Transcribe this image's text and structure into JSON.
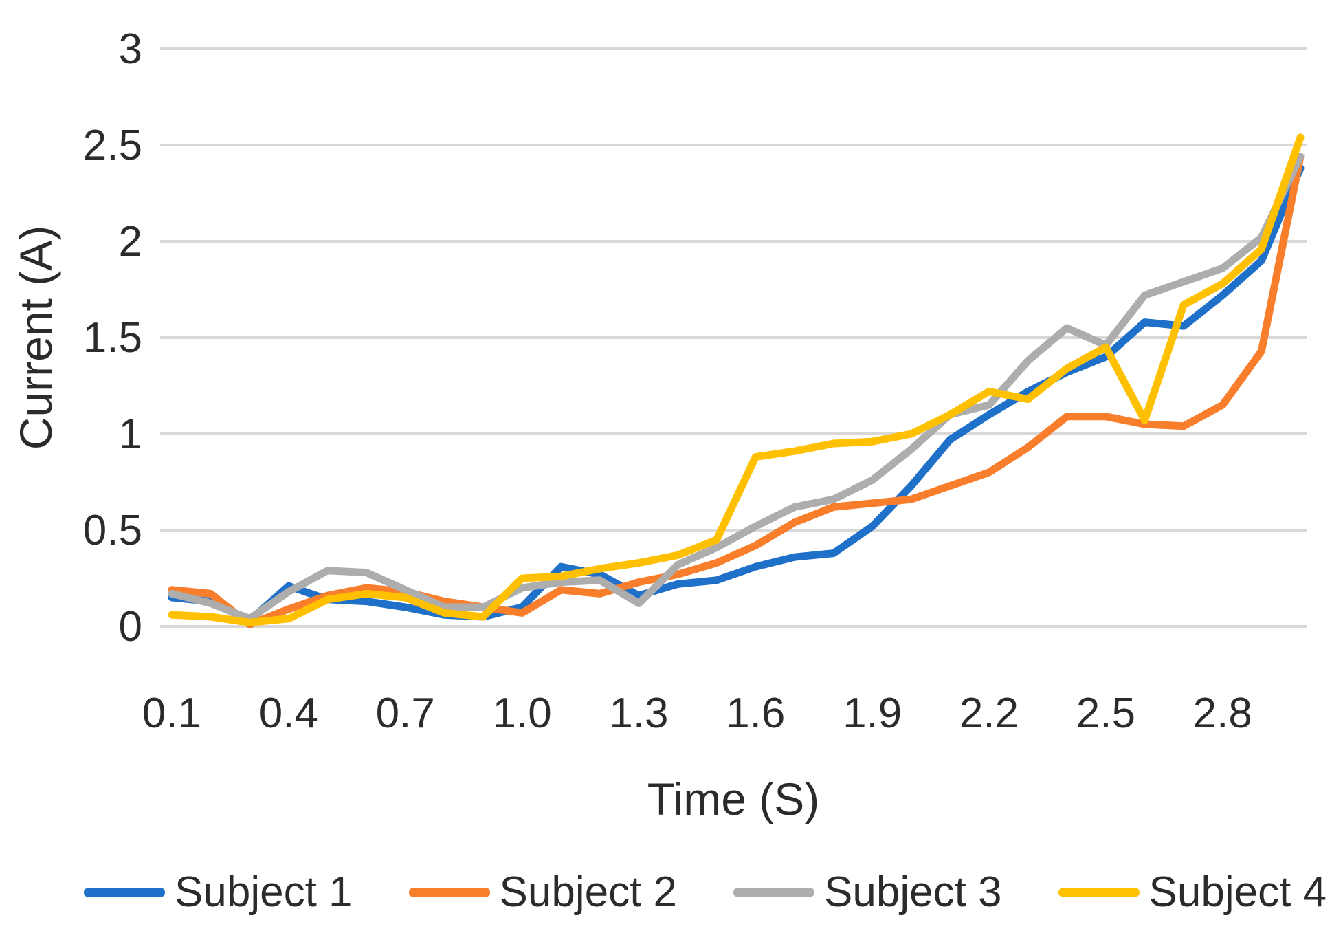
{
  "chart_data": {
    "type": "line",
    "title": "",
    "xlabel": "Time (S)",
    "ylabel": "Current (A)",
    "x": [
      0.1,
      0.2,
      0.3,
      0.4,
      0.5,
      0.6,
      0.7,
      0.8,
      0.9,
      1.0,
      1.1,
      1.2,
      1.3,
      1.4,
      1.5,
      1.6,
      1.7,
      1.8,
      1.9,
      2.0,
      2.1,
      2.2,
      2.3,
      2.4,
      2.5,
      2.6,
      2.7,
      2.8,
      2.9,
      3.0
    ],
    "x_tick_labels": [
      "0.1",
      "0.4",
      "0.7",
      "1.0",
      "1.3",
      "1.6",
      "1.9",
      "2.2",
      "2.5",
      "2.8"
    ],
    "x_tick_every": 3,
    "y_tick_labels": [
      "0",
      "0.5",
      "1",
      "1.5",
      "2",
      "2.5",
      "3"
    ],
    "ylim": [
      0,
      3
    ],
    "xlim": [
      0.1,
      3.0
    ],
    "grid": "horizontal",
    "legend_position": "bottom",
    "colors": {
      "gridline": "#D8D8D8",
      "text": "#2B2B2B",
      "background": "#FFFFFF"
    },
    "series": [
      {
        "name": "Subject 1",
        "color": "#1F70C8",
        "values": [
          0.15,
          0.13,
          0.03,
          0.21,
          0.14,
          0.13,
          0.1,
          0.06,
          0.05,
          0.1,
          0.31,
          0.27,
          0.16,
          0.22,
          0.24,
          0.31,
          0.36,
          0.38,
          0.52,
          0.73,
          0.97,
          1.1,
          1.22,
          1.32,
          1.4,
          1.58,
          1.56,
          1.72,
          1.9,
          2.38
        ]
      },
      {
        "name": "Subject 2",
        "color": "#F87E2C",
        "values": [
          0.19,
          0.17,
          0.01,
          0.09,
          0.16,
          0.2,
          0.18,
          0.13,
          0.1,
          0.07,
          0.19,
          0.17,
          0.23,
          0.27,
          0.33,
          0.42,
          0.54,
          0.62,
          0.64,
          0.66,
          0.73,
          0.8,
          0.93,
          1.09,
          1.09,
          1.05,
          1.04,
          1.15,
          1.43,
          2.44
        ]
      },
      {
        "name": "Subject 3",
        "color": "#ADADAD",
        "values": [
          0.17,
          0.12,
          0.04,
          0.18,
          0.29,
          0.28,
          0.19,
          0.1,
          0.1,
          0.2,
          0.23,
          0.24,
          0.12,
          0.32,
          0.41,
          0.52,
          0.62,
          0.66,
          0.76,
          0.92,
          1.1,
          1.15,
          1.38,
          1.55,
          1.46,
          1.72,
          1.79,
          1.86,
          2.02,
          2.44
        ]
      },
      {
        "name": "Subject 4",
        "color": "#FFC000",
        "values": [
          0.06,
          0.05,
          0.02,
          0.04,
          0.14,
          0.17,
          0.15,
          0.07,
          0.05,
          0.25,
          0.26,
          0.3,
          0.33,
          0.37,
          0.45,
          0.88,
          0.91,
          0.95,
          0.96,
          1.0,
          1.1,
          1.22,
          1.18,
          1.34,
          1.45,
          1.07,
          1.67,
          1.78,
          1.96,
          2.54
        ]
      }
    ]
  }
}
